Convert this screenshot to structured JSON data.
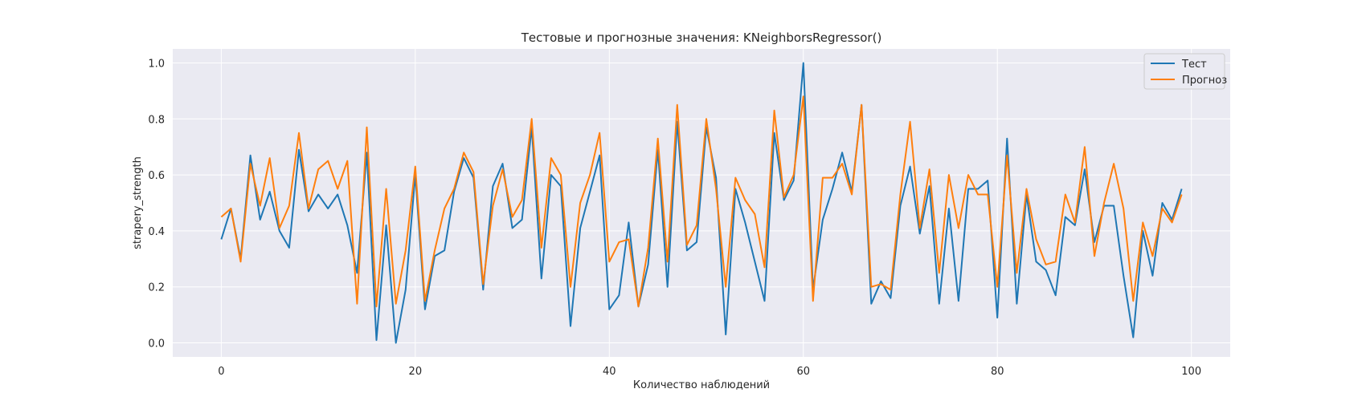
{
  "chart_data": {
    "type": "line",
    "title": "Тестовые и прогнозные значения: KNeighborsRegressor()",
    "xlabel": "Количество наблюдений",
    "ylabel": "strapery_strength",
    "xlim": [
      -5,
      104
    ],
    "ylim": [
      -0.05,
      1.05
    ],
    "xticks": [
      "0",
      "20",
      "40",
      "60",
      "80",
      "100"
    ],
    "yticks": [
      "0.0",
      "0.2",
      "0.4",
      "0.6",
      "0.8",
      "1.0"
    ],
    "grid": true,
    "legend_position": "top-right",
    "x": [
      0,
      1,
      2,
      3,
      4,
      5,
      6,
      7,
      8,
      9,
      10,
      11,
      12,
      13,
      14,
      15,
      16,
      17,
      18,
      19,
      20,
      21,
      22,
      23,
      24,
      25,
      26,
      27,
      28,
      29,
      30,
      31,
      32,
      33,
      34,
      35,
      36,
      37,
      38,
      39,
      40,
      41,
      42,
      43,
      44,
      45,
      46,
      47,
      48,
      49,
      50,
      51,
      52,
      53,
      54,
      55,
      56,
      57,
      58,
      59,
      60,
      61,
      62,
      63,
      64,
      65,
      66,
      67,
      68,
      69,
      70,
      71,
      72,
      73,
      74,
      75,
      76,
      77,
      78,
      79,
      80,
      81,
      82,
      83,
      84,
      85,
      86,
      87,
      88,
      89,
      90,
      91,
      92,
      93,
      94,
      95,
      96,
      97,
      98,
      99
    ],
    "series": [
      {
        "name": "Тест",
        "color": "#1f77b4",
        "values": [
          0.37,
          0.48,
          0.3,
          0.67,
          0.44,
          0.54,
          0.4,
          0.34,
          0.69,
          0.47,
          0.53,
          0.48,
          0.53,
          0.42,
          0.25,
          0.68,
          0.01,
          0.42,
          0.0,
          0.19,
          0.6,
          0.12,
          0.31,
          0.33,
          0.54,
          0.66,
          0.59,
          0.19,
          0.56,
          0.64,
          0.41,
          0.44,
          0.77,
          0.23,
          0.6,
          0.56,
          0.06,
          0.41,
          0.54,
          0.67,
          0.12,
          0.17,
          0.43,
          0.13,
          0.28,
          0.69,
          0.2,
          0.79,
          0.33,
          0.36,
          0.77,
          0.59,
          0.03,
          0.55,
          0.43,
          0.29,
          0.15,
          0.75,
          0.51,
          0.58,
          1.0,
          0.19,
          0.44,
          0.55,
          0.68,
          0.54,
          0.85,
          0.14,
          0.22,
          0.16,
          0.49,
          0.63,
          0.39,
          0.56,
          0.14,
          0.48,
          0.15,
          0.55,
          0.55,
          0.58,
          0.09,
          0.73,
          0.14,
          0.53,
          0.29,
          0.26,
          0.17,
          0.45,
          0.42,
          0.62,
          0.36,
          0.49,
          0.49,
          0.24,
          0.02,
          0.4,
          0.24,
          0.5,
          0.44,
          0.55
        ]
      },
      {
        "name": "Прогноз",
        "color": "#ff7f0e",
        "values": [
          0.45,
          0.48,
          0.29,
          0.64,
          0.49,
          0.66,
          0.41,
          0.49,
          0.75,
          0.48,
          0.62,
          0.65,
          0.55,
          0.65,
          0.14,
          0.77,
          0.13,
          0.55,
          0.14,
          0.33,
          0.63,
          0.15,
          0.33,
          0.48,
          0.55,
          0.68,
          0.61,
          0.21,
          0.49,
          0.62,
          0.45,
          0.51,
          0.8,
          0.34,
          0.66,
          0.6,
          0.2,
          0.5,
          0.6,
          0.75,
          0.29,
          0.36,
          0.37,
          0.13,
          0.34,
          0.73,
          0.29,
          0.85,
          0.35,
          0.42,
          0.8,
          0.55,
          0.2,
          0.59,
          0.51,
          0.46,
          0.27,
          0.83,
          0.52,
          0.6,
          0.88,
          0.15,
          0.59,
          0.59,
          0.64,
          0.53,
          0.85,
          0.2,
          0.21,
          0.19,
          0.53,
          0.79,
          0.41,
          0.62,
          0.25,
          0.6,
          0.41,
          0.6,
          0.53,
          0.53,
          0.2,
          0.67,
          0.25,
          0.55,
          0.37,
          0.28,
          0.29,
          0.53,
          0.43,
          0.7,
          0.31,
          0.5,
          0.64,
          0.48,
          0.15,
          0.43,
          0.31,
          0.48,
          0.43,
          0.53
        ]
      }
    ]
  }
}
